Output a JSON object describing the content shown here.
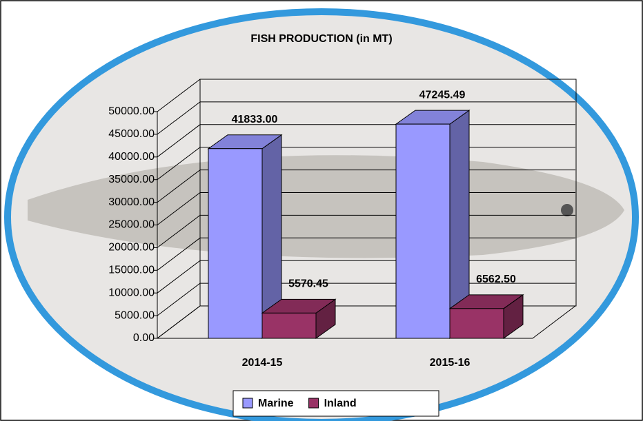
{
  "chart_data": {
    "type": "bar3d",
    "title": "FISH PRODUCTION (in MT)",
    "categories": [
      "2014-15",
      "2015-16"
    ],
    "series": [
      {
        "name": "Marine",
        "color": "#9999ff",
        "values": [
          41833.0,
          47245.49
        ],
        "value_labels": [
          "41833.00",
          "47245.49"
        ]
      },
      {
        "name": "Inland",
        "color": "#993366",
        "values": [
          5570.45,
          6562.5
        ],
        "value_labels": [
          "5570.45",
          "6562.50"
        ]
      }
    ],
    "ylim": [
      0,
      50000
    ],
    "yticks": [
      {
        "value": 0,
        "label": "0.00"
      },
      {
        "value": 5000,
        "label": "5000.00"
      },
      {
        "value": 10000,
        "label": "10000.00"
      },
      {
        "value": 15000,
        "label": "15000.00"
      },
      {
        "value": 20000,
        "label": "20000.00"
      },
      {
        "value": 25000,
        "label": "25000.00"
      },
      {
        "value": 30000,
        "label": "30000.00"
      },
      {
        "value": 35000,
        "label": "35000.00"
      },
      {
        "value": 40000,
        "label": "40000.00"
      },
      {
        "value": 45000,
        "label": "45000.00"
      },
      {
        "value": 50000,
        "label": "50000.00"
      }
    ],
    "grid": true,
    "legend": "bottom"
  }
}
